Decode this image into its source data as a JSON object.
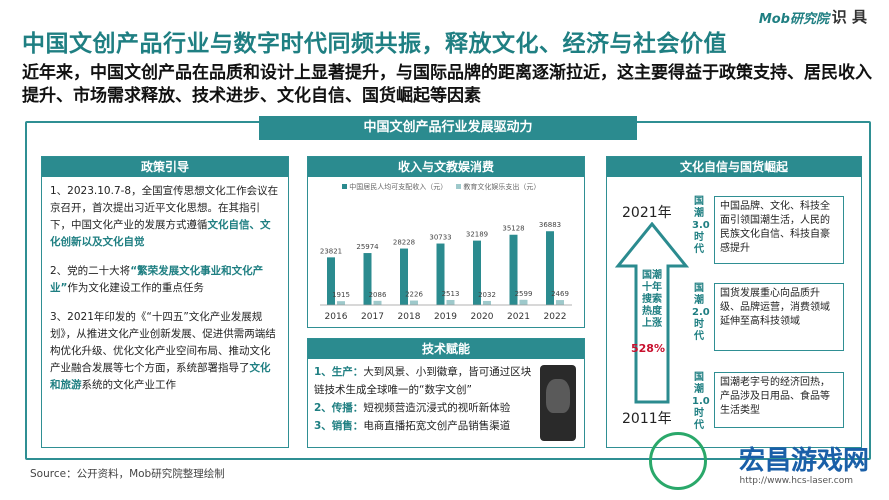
{
  "header": {
    "logo": "Mob研究院",
    "logo_cn": "识 具",
    "title": "中国文创产品行业与数字时代同频共振，释放文化、经济与社会价值",
    "subtitle": "近年来，中国文创产品在品质和设计上显著提升，与国际品牌的距离逐渐拉近，这主要得益于政策支持、居民收入提升、市场需求释放、技术进步、文化自信、国货崛起等因素"
  },
  "main_title": "中国文创产品行业发展驱动力",
  "policy": {
    "heading": "政策引导",
    "p1_a": "1、2023.10.7-8，全国宣传思想文化工作会议在京召开，首次提出习近平文化思想。在其指引下，中国文化产业的发展方式遵循",
    "p1_hl": "文化自信、文化创新以及文化自觉",
    "p2_a": "2、党的二十大将",
    "p2_hl": "“繁荣发展文化事业和文化产业”",
    "p2_b": "作为文化建设工作的重点任务",
    "p3_a": "3、2021年印发的《“十四五”文化产业发展规划》，从推进文化产业创新发展、促进供需两端结构优化升级、优化文化产业空间布局、推动文化产业融合发展等七个方面，系统部署指导了",
    "p3_hl": "文化和旅游",
    "p3_b": "系统的文化产业工作"
  },
  "income": {
    "heading": "收入与文教娱消费",
    "legend_a": "中国居民人均可支配收入（元）",
    "legend_b": "教育文化娱乐支出（元）"
  },
  "chart_data": {
    "type": "bar",
    "categories": [
      "2016",
      "2017",
      "2018",
      "2019",
      "2020",
      "2021",
      "2022"
    ],
    "series": [
      {
        "name": "中国居民人均可支配收入（元）",
        "values": [
          23821,
          25974,
          28228,
          30733,
          32189,
          35128,
          36883
        ]
      },
      {
        "name": "教育文化娱乐支出（元）",
        "values": [
          1915,
          2086,
          2226,
          2513,
          2032,
          2599,
          2469
        ]
      }
    ],
    "labels_a": [
      "23821",
      "25974",
      "28228",
      "30733",
      "32189",
      "35128",
      "36883"
    ],
    "labels_b": [
      "1915",
      "2086",
      "2226",
      "2513",
      "2032",
      "2599",
      "2469"
    ],
    "colors": [
      "#2b8b8f",
      "#9ec9cb"
    ]
  },
  "tech": {
    "heading": "技术赋能",
    "i1_k": "1、生产：",
    "i1_v": "大到风景、小到徽章，皆可通过区块链技术生成全球唯一的“数字文创”",
    "i2_k": "2、传播：",
    "i2_v": "短视频营造沉浸式的视听新体验",
    "i3_k": "3、销售：",
    "i3_v": "电商直播拓宽文创产品销售渠道"
  },
  "culture": {
    "heading": "文化自信与国货崛起",
    "year_top": "2021年",
    "year_bottom": "2011年",
    "arrow_text": "国潮十年搜索热度上涨",
    "arrow_value": "528%",
    "label_3": "国潮3.0时代",
    "label_2": "国潮2.0时代",
    "label_1": "国潮1.0时代",
    "box_3": "中国品牌、文化、科技全面引领国潮生活，人民的民族文化自信、科技自豪感提升",
    "box_2": "国货发展重心向品质升级、品牌运营，消费领域延伸至高科技领域",
    "box_1": "国潮老字号的经济回热，产品涉及日用品、食品等生活类型"
  },
  "source": "Source：公开资料，Mob研究院整理绘制",
  "watermark": {
    "text": "宏昌游戏网",
    "url": "http://www.hcs-laser.com"
  }
}
